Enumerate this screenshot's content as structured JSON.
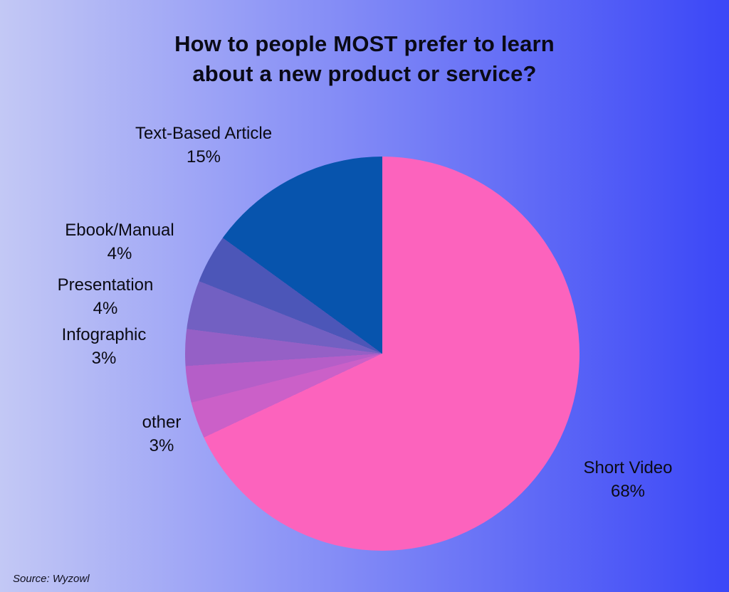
{
  "title": {
    "line1": "How to people MOST prefer to learn",
    "line2": "about a new product or service?"
  },
  "source_text": "Source: Wyzowl",
  "background": {
    "left_color": "#C3C8F5",
    "right_color": "#3B47F7"
  },
  "chart_data": {
    "type": "pie",
    "title": "How to people MOST prefer to learn about a new product or service?",
    "source": "Source: Wyzowl",
    "legend_position": "none",
    "labels_layout": "outside",
    "start_angle_deg": 0,
    "direction": "clockwise",
    "categories": [
      "Short Video",
      "other",
      "",
      "Infographic",
      "Presentation",
      "Ebook/Manual",
      "Text-Based Article"
    ],
    "values": [
      68,
      3,
      3,
      3,
      4,
      4,
      15
    ],
    "segments": [
      {
        "label": "Short Video",
        "pct_text": "68%",
        "value": 68,
        "color": "#FC63BD",
        "start_deg": 0,
        "end_deg": 244.8,
        "labeled": true
      },
      {
        "label": "other",
        "pct_text": "3%",
        "value": 3,
        "color": "#CB60C8",
        "start_deg": 244.8,
        "end_deg": 255.6,
        "labeled": true
      },
      {
        "label": "",
        "pct_text": "",
        "value": 3,
        "color": "#B55EC8",
        "start_deg": 255.6,
        "end_deg": 266.4,
        "labeled": false
      },
      {
        "label": "Infographic",
        "pct_text": "3%",
        "value": 3,
        "color": "#9560C6",
        "start_deg": 266.4,
        "end_deg": 277.2,
        "labeled": true
      },
      {
        "label": "Presentation",
        "pct_text": "4%",
        "value": 4,
        "color": "#7260C2",
        "start_deg": 277.2,
        "end_deg": 291.6,
        "labeled": true
      },
      {
        "label": "Ebook/Manual",
        "pct_text": "4%",
        "value": 4,
        "color": "#4C56B8",
        "start_deg": 291.6,
        "end_deg": 306,
        "labeled": true
      },
      {
        "label": "Text-Based Article",
        "pct_text": "15%",
        "value": 15,
        "color": "#0754AD",
        "start_deg": 306,
        "end_deg": 360,
        "labeled": true
      }
    ]
  }
}
